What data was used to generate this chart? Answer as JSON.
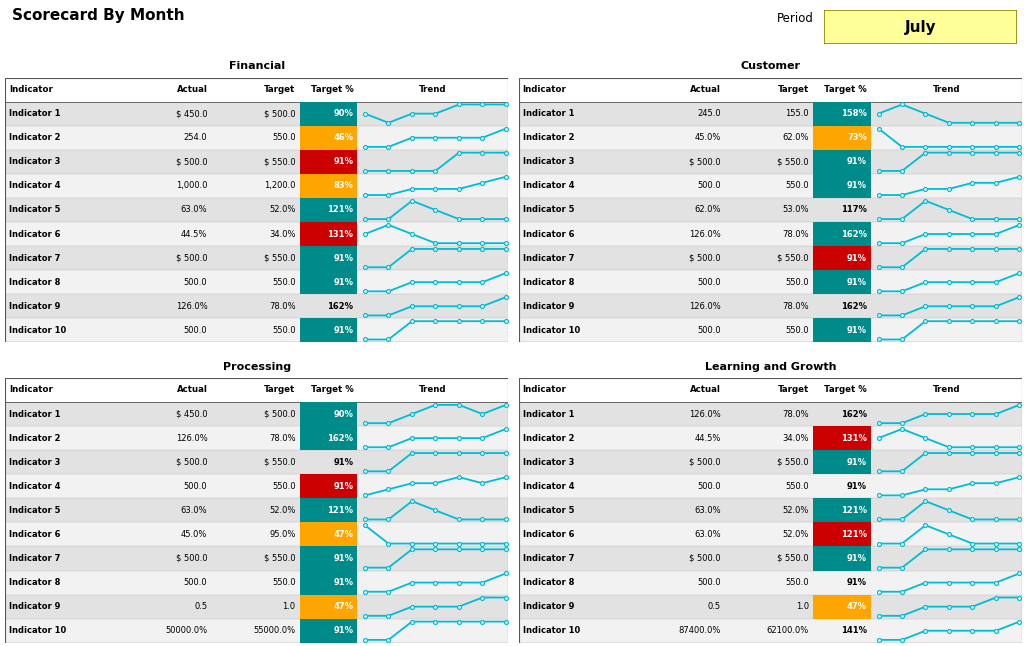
{
  "title": "Scorecard By Month",
  "period_label": "Period",
  "period_value": "July",
  "bg_color": "#FFFFFF",
  "teal_color": "#008B8B",
  "red_color": "#CC0000",
  "orange_color": "#FFA500",
  "trend_color": "#00BCD4",
  "sections": [
    {
      "title": "Financial",
      "col": 0,
      "row": 0,
      "rows": [
        {
          "indicator": "Indicator 1",
          "actual": "$ 450.0",
          "target": "$ 500.0",
          "pct": "90%",
          "color": "teal",
          "trend": [
            3,
            2,
            3,
            3,
            4,
            4,
            4
          ]
        },
        {
          "indicator": "Indicator 2",
          "actual": "254.0",
          "target": "550.0",
          "pct": "46%",
          "color": "orange",
          "trend": [
            1,
            1,
            2,
            2,
            2,
            2,
            3
          ]
        },
        {
          "indicator": "Indicator 3",
          "actual": "$ 500.0",
          "target": "$ 550.0",
          "pct": "91%",
          "color": "red",
          "trend": [
            2,
            2,
            2,
            2,
            3,
            3,
            3
          ]
        },
        {
          "indicator": "Indicator 4",
          "actual": "1,000.0",
          "target": "1,200.0",
          "pct": "83%",
          "color": "orange",
          "trend": [
            1,
            1,
            2,
            2,
            2,
            3,
            4
          ]
        },
        {
          "indicator": "Indicator 5",
          "actual": "63.0%",
          "target": "52.0%",
          "pct": "121%",
          "color": "teal",
          "trend": [
            3,
            3,
            5,
            4,
            3,
            3,
            3
          ]
        },
        {
          "indicator": "Indicator 6",
          "actual": "44.5%",
          "target": "34.0%",
          "pct": "131%",
          "color": "red",
          "trend": [
            4,
            5,
            4,
            3,
            3,
            3,
            3
          ]
        },
        {
          "indicator": "Indicator 7",
          "actual": "$ 500.0",
          "target": "$ 550.0",
          "pct": "91%",
          "color": "teal",
          "trend": [
            2,
            2,
            3,
            3,
            3,
            3,
            3
          ]
        },
        {
          "indicator": "Indicator 8",
          "actual": "500.0",
          "target": "550.0",
          "pct": "91%",
          "color": "teal",
          "trend": [
            2,
            2,
            3,
            3,
            3,
            3,
            4
          ]
        },
        {
          "indicator": "Indicator 9",
          "actual": "126.0%",
          "target": "78.0%",
          "pct": "162%",
          "color": "none",
          "trend": [
            2,
            2,
            3,
            3,
            3,
            3,
            4
          ]
        },
        {
          "indicator": "Indicator 10",
          "actual": "500.0",
          "target": "550.0",
          "pct": "91%",
          "color": "teal",
          "trend": [
            2,
            2,
            3,
            3,
            3,
            3,
            3
          ]
        }
      ]
    },
    {
      "title": "Customer",
      "col": 1,
      "row": 0,
      "rows": [
        {
          "indicator": "Indicator 1",
          "actual": "245.0",
          "target": "155.0",
          "pct": "158%",
          "color": "teal",
          "trend": [
            4,
            5,
            4,
            3,
            3,
            3,
            3
          ]
        },
        {
          "indicator": "Indicator 2",
          "actual": "45.0%",
          "target": "62.0%",
          "pct": "73%",
          "color": "orange",
          "trend": [
            3,
            2,
            2,
            2,
            2,
            2,
            2
          ]
        },
        {
          "indicator": "Indicator 3",
          "actual": "$ 500.0",
          "target": "$ 550.0",
          "pct": "91%",
          "color": "teal",
          "trend": [
            2,
            2,
            3,
            3,
            3,
            3,
            3
          ]
        },
        {
          "indicator": "Indicator 4",
          "actual": "500.0",
          "target": "550.0",
          "pct": "91%",
          "color": "teal",
          "trend": [
            1,
            1,
            2,
            2,
            3,
            3,
            4
          ]
        },
        {
          "indicator": "Indicator 5",
          "actual": "62.0%",
          "target": "53.0%",
          "pct": "117%",
          "color": "none",
          "trend": [
            3,
            3,
            5,
            4,
            3,
            3,
            3
          ]
        },
        {
          "indicator": "Indicator 6",
          "actual": "126.0%",
          "target": "78.0%",
          "pct": "162%",
          "color": "teal",
          "trend": [
            2,
            2,
            3,
            3,
            3,
            3,
            4
          ]
        },
        {
          "indicator": "Indicator 7",
          "actual": "$ 500.0",
          "target": "$ 550.0",
          "pct": "91%",
          "color": "red",
          "trend": [
            2,
            2,
            3,
            3,
            3,
            3,
            3
          ]
        },
        {
          "indicator": "Indicator 8",
          "actual": "500.0",
          "target": "550.0",
          "pct": "91%",
          "color": "teal",
          "trend": [
            2,
            2,
            3,
            3,
            3,
            3,
            4
          ]
        },
        {
          "indicator": "Indicator 9",
          "actual": "126.0%",
          "target": "78.0%",
          "pct": "162%",
          "color": "none",
          "trend": [
            2,
            2,
            3,
            3,
            3,
            3,
            4
          ]
        },
        {
          "indicator": "Indicator 10",
          "actual": "500.0",
          "target": "550.0",
          "pct": "91%",
          "color": "teal",
          "trend": [
            2,
            2,
            3,
            3,
            3,
            3,
            3
          ]
        }
      ]
    },
    {
      "title": "Processing",
      "col": 0,
      "row": 1,
      "rows": [
        {
          "indicator": "Indicator 1",
          "actual": "$ 450.0",
          "target": "$ 500.0",
          "pct": "90%",
          "color": "teal",
          "trend": [
            2,
            2,
            3,
            4,
            4,
            3,
            4
          ]
        },
        {
          "indicator": "Indicator 2",
          "actual": "126.0%",
          "target": "78.0%",
          "pct": "162%",
          "color": "teal",
          "trend": [
            2,
            2,
            3,
            3,
            3,
            3,
            4
          ]
        },
        {
          "indicator": "Indicator 3",
          "actual": "$ 500.0",
          "target": "$ 550.0",
          "pct": "91%",
          "color": "none",
          "trend": [
            2,
            2,
            3,
            3,
            3,
            3,
            3
          ]
        },
        {
          "indicator": "Indicator 4",
          "actual": "500.0",
          "target": "550.0",
          "pct": "91%",
          "color": "red",
          "trend": [
            1,
            2,
            3,
            3,
            4,
            3,
            4
          ]
        },
        {
          "indicator": "Indicator 5",
          "actual": "63.0%",
          "target": "52.0%",
          "pct": "121%",
          "color": "teal",
          "trend": [
            3,
            3,
            5,
            4,
            3,
            3,
            3
          ]
        },
        {
          "indicator": "Indicator 6",
          "actual": "45.0%",
          "target": "95.0%",
          "pct": "47%",
          "color": "orange",
          "trend": [
            3,
            2,
            2,
            2,
            2,
            2,
            2
          ]
        },
        {
          "indicator": "Indicator 7",
          "actual": "$ 500.0",
          "target": "$ 550.0",
          "pct": "91%",
          "color": "teal",
          "trend": [
            2,
            2,
            3,
            3,
            3,
            3,
            3
          ]
        },
        {
          "indicator": "Indicator 8",
          "actual": "500.0",
          "target": "550.0",
          "pct": "91%",
          "color": "teal",
          "trend": [
            2,
            2,
            3,
            3,
            3,
            3,
            4
          ]
        },
        {
          "indicator": "Indicator 9",
          "actual": "0.5",
          "target": "1.0",
          "pct": "47%",
          "color": "orange",
          "trend": [
            1,
            1,
            2,
            2,
            2,
            3,
            3
          ]
        },
        {
          "indicator": "Indicator 10",
          "actual": "50000.0%",
          "target": "55000.0%",
          "pct": "91%",
          "color": "teal",
          "trend": [
            2,
            2,
            3,
            3,
            3,
            3,
            3
          ]
        }
      ]
    },
    {
      "title": "Learning and Growth",
      "col": 1,
      "row": 1,
      "rows": [
        {
          "indicator": "Indicator 1",
          "actual": "126.0%",
          "target": "78.0%",
          "pct": "162%",
          "color": "none",
          "trend": [
            2,
            2,
            3,
            3,
            3,
            3,
            4
          ]
        },
        {
          "indicator": "Indicator 2",
          "actual": "44.5%",
          "target": "34.0%",
          "pct": "131%",
          "color": "red",
          "trend": [
            4,
            5,
            4,
            3,
            3,
            3,
            3
          ]
        },
        {
          "indicator": "Indicator 3",
          "actual": "$ 500.0",
          "target": "$ 550.0",
          "pct": "91%",
          "color": "teal",
          "trend": [
            2,
            2,
            3,
            3,
            3,
            3,
            3
          ]
        },
        {
          "indicator": "Indicator 4",
          "actual": "500.0",
          "target": "550.0",
          "pct": "91%",
          "color": "none",
          "trend": [
            1,
            1,
            2,
            2,
            3,
            3,
            4
          ]
        },
        {
          "indicator": "Indicator 5",
          "actual": "63.0%",
          "target": "52.0%",
          "pct": "121%",
          "color": "teal",
          "trend": [
            3,
            3,
            5,
            4,
            3,
            3,
            3
          ]
        },
        {
          "indicator": "Indicator 6",
          "actual": "63.0%",
          "target": "52.0%",
          "pct": "121%",
          "color": "red",
          "trend": [
            3,
            3,
            5,
            4,
            3,
            3,
            3
          ]
        },
        {
          "indicator": "Indicator 7",
          "actual": "$ 500.0",
          "target": "$ 550.0",
          "pct": "91%",
          "color": "teal",
          "trend": [
            2,
            2,
            3,
            3,
            3,
            3,
            3
          ]
        },
        {
          "indicator": "Indicator 8",
          "actual": "500.0",
          "target": "550.0",
          "pct": "91%",
          "color": "none",
          "trend": [
            2,
            2,
            3,
            3,
            3,
            3,
            4
          ]
        },
        {
          "indicator": "Indicator 9",
          "actual": "0.5",
          "target": "1.0",
          "pct": "47%",
          "color": "orange",
          "trend": [
            1,
            1,
            2,
            2,
            2,
            3,
            3
          ]
        },
        {
          "indicator": "Indicator 10",
          "actual": "87400.0%",
          "target": "62100.0%",
          "pct": "141%",
          "color": "none",
          "trend": [
            2,
            2,
            3,
            3,
            3,
            3,
            4
          ]
        }
      ]
    }
  ]
}
